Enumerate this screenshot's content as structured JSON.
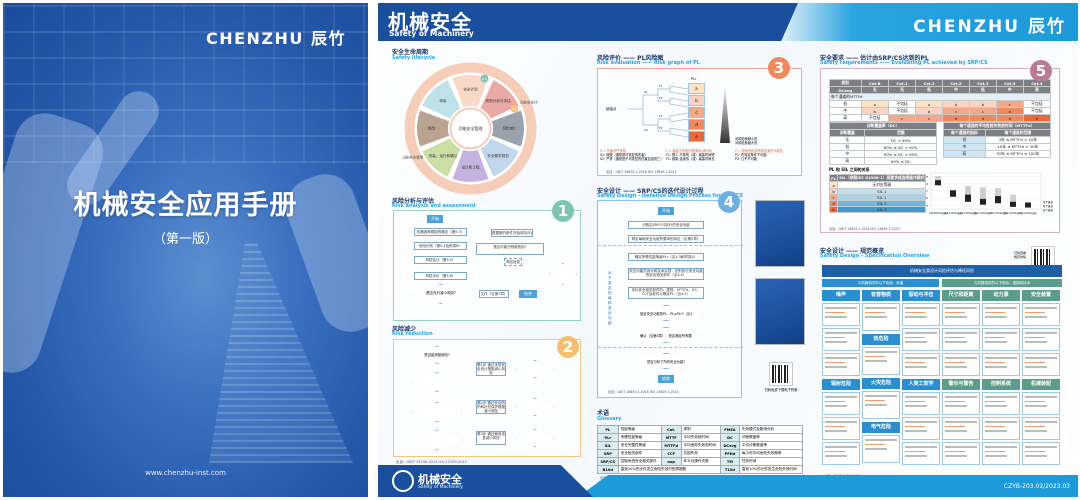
{
  "cover": {
    "logo": "CHENZHU 辰竹",
    "title": "机械安全应用手册",
    "edition": "（第一版）",
    "url": "www.chenzhu-inst.com"
  },
  "spread": {
    "header": {
      "title": "机械安全",
      "subtitle": "Safety of Machinery",
      "logo": "CHENZHU 辰竹"
    },
    "footer": {
      "logo_cn": "机械安全",
      "logo_en": "Safety of Machinery",
      "code": "CZYB-203.02/2023.03"
    },
    "lifecycle": {
      "title_cn": "安全生命周期",
      "title_en": "Safety lifecycle",
      "center": "功能安全管理",
      "ring_labels": [
        "功能安全评估",
        "功能安全管理"
      ],
      "segments": [
        {
          "label": "安全计划",
          "color": "#f8d9c8"
        },
        {
          "label": "风险分析与评估",
          "color": "#e9a9a6"
        },
        {
          "label": "风险减少",
          "color": "#9aa3ad"
        },
        {
          "label": "安全要求规范",
          "color": "#c3d7ec"
        },
        {
          "label": "设计和工程",
          "color": "#c6b2e0"
        },
        {
          "label": "安装、运行和确认",
          "color": "#cadfa4"
        },
        {
          "label": "修改",
          "color": "#bba392"
        },
        {
          "label": "停用",
          "color": "#bfe1e8"
        }
      ],
      "markers": [
        "▷1",
        "▷2"
      ]
    },
    "risk_analysis": {
      "title_cn": "风险分析与评估",
      "title_en": "Risk analysis and assessment",
      "badge": "1",
      "start": "开始",
      "end": "结束",
      "steps": [
        "机器各种限制的确定（第5.3）",
        "危险识别（第5.4及附录B）",
        "风险估计（第5.5）",
        "风险评价（第5.6）"
      ],
      "decision": "是否充分减小风险?",
      "doc": "文件（见第7章）",
      "side": "根据新的条件开始风险评价",
      "note": "是否可能识别新危险?",
      "risk_info": "风险信息",
      "yes": "是",
      "no": "否"
    },
    "risk_reduction": {
      "title_cn": "风险减少",
      "title_en": "Risk reduction",
      "badge": "2",
      "decisions": [
        "是否能消除危险?",
        "是否能通过本质安全设计措施减小风险?",
        "是否能通过防护装置、保护装置减小风险?",
        "是否能通过使用信息减小风险?"
      ],
      "steps": [
        "第1步 通过本质安全设计措施减小风险",
        "第2步 通过安全防护和补充保护措施减小风险",
        "第3步 通过使用信息减小风险"
      ],
      "check": "是否达到预期的风险减小?",
      "source": "出自：GB/T 15706-2012 ISO 12100:2010"
    },
    "risk_graph": {
      "title_cn": "风险评价 —— PL风险图",
      "title_en": "Risk evaluation —— Risk graph of PL",
      "badge": "3",
      "start": "起始点",
      "plr_label": "PLr",
      "levels": [
        {
          "pl": "a",
          "color": "#fbe3c3"
        },
        {
          "pl": "b",
          "color": "#f9d3c3"
        },
        {
          "pl": "c",
          "color": "#f2a98a"
        },
        {
          "pl": "d",
          "color": "#ed8a5e"
        },
        {
          "pl": "e",
          "color": "#e8693a"
        }
      ],
      "branch_labels": [
        "S1",
        "S2",
        "F1",
        "F2",
        "F1",
        "F2",
        "P1",
        "P2"
      ],
      "legend_s": [
        "S = 伤害的严重度",
        "S1: 轻微（通常是可恢复的伤害）",
        "S2: 严重（通常是不可恢复的伤害包括死亡）"
      ],
      "legend_f": [
        "F = 暴露于危险的频率和/或时间",
        "F1: 很少-不常有（或）暴露时间短",
        "F2: 频繁-连续的（或）暴露时间长"
      ],
      "legend_p": [
        "P = 避免危险或限制伤害的可能性",
        "P1: 在特定条件下可能",
        "P2: 几乎不可能"
      ],
      "risk_low": "对风险贡献小的",
      "risk_high": "对风险贡献大的",
      "source": "出自：GB/T 16855.1-2018 ISO 13849-1:2015"
    },
    "iterative": {
      "title_cn": "安全设计 —— SRP/CS的迭代设计过程",
      "title_en": "Safety Design - Iterative Design Process for SRP/CS",
      "badge": "4",
      "start": "开始",
      "end": "结束",
      "steps": [
        "识别由SRP/CS执行的安全功能",
        "规定每种安全功能所要求的特征（见第5章）",
        "确定所需性能等级PLr（见4.3和附录A）",
        "安全功能的设计和技术实现：识别执行安全功能的安全相关部件（见4.4）",
        "评价安全相关部件的：类别、MTTFd、DC、CCF及软件以确定PL（见4.5）"
      ],
      "decisions": [
        "验证安全功能的PL：PL≥PLr?（见4.7）",
        "确认（见第8章）：是否满足所有要求?",
        "是否分析了所有安全功能?"
      ],
      "side_label": "对于选定的每种安全功能",
      "download": "扫码免费下载电子样册",
      "yes": "是",
      "no": "否",
      "source": "出自：GB/T 16855.1-2018 ISO 13849-1:2015"
    },
    "glossary": {
      "title_cn": "术语",
      "title_en": "Glossary",
      "rows": [
        [
          [
            "PL",
            "性能等级"
          ],
          [
            "Cat.",
            "类别"
          ],
          [
            "FMEA",
            "失效模式及影响分析"
          ]
        ],
        [
          [
            "PLr",
            "所需性能等级"
          ],
          [
            "MTTF",
            "平均失效前时间"
          ],
          [
            "DC",
            "诊断覆盖率"
          ]
        ],
        [
          [
            "SIL",
            "安全完整性等级"
          ],
          [
            "MTTFd",
            "平均危险失效前时间"
          ],
          [
            "DCavg",
            "平均诊断覆盖率"
          ]
        ],
        [
          [
            "SRP",
            "安全相关部件"
          ],
          [
            "CCF",
            "共因失效"
          ],
          [
            "PFHd",
            "每小时平均危险失效概率"
          ]
        ],
        [
          [
            "SRP/CS",
            "控制系统安全相关部件"
          ],
          [
            "nop",
            "年平均操作次数"
          ],
          [
            "TM",
            "任务时间"
          ]
        ],
        [
          [
            "B10d",
            "直到10%的元件发生危险失效时的周期数"
          ],
          [
            "T10d",
            "直到10%的元件发生危险失效时间"
          ]
        ]
      ],
      "source": "出自：GB/T 16855.1-2018 ISO 13849-1:2015"
    },
    "requirements": {
      "title_cn": "安全要求 —— 估计由SRP/CS达到的PL",
      "title_en": "Safety requirements —— Evaluating PL achieved by SRP/CS",
      "badge": "5",
      "main_table": {
        "header": [
          "类别",
          "Cat.B",
          "Cat.1",
          "Cat.2",
          "Cat.2",
          "Cat.3",
          "Cat.3",
          "Cat.4"
        ],
        "dc_row": [
          "DCavg",
          "无",
          "无",
          "低",
          "中",
          "低",
          "中",
          "高"
        ],
        "mttf_label": "每个通道的MTTFd",
        "rows": [
          [
            "低",
            "a",
            "不包括",
            "a",
            "b",
            "b",
            "c",
            "不包括"
          ],
          [
            "中",
            "b",
            "不包括",
            "b",
            "c",
            "c",
            "d",
            "不包括"
          ],
          [
            "高",
            "不包括",
            "c",
            "c",
            "d",
            "d",
            "d",
            "e"
          ]
        ]
      },
      "dc_table": {
        "title": "诊断覆盖率（DC）",
        "header": [
          "诊断覆盖",
          "范围"
        ],
        "rows": [
          [
            "无",
            "DC < 60%"
          ],
          [
            "低",
            "60% ≤ DC < 90%"
          ],
          [
            "中",
            "90% ≤ DC < 99%"
          ],
          [
            "高",
            "99% ≤ DC"
          ]
        ]
      },
      "mttf_table": {
        "title": "每个通道的平均危险失效前时间（MTTFd）",
        "header": [
          "每个通道的指标",
          "每个通道的范围"
        ],
        "rows": [
          [
            "低",
            "3年 ≤ MTTFd < 10年"
          ],
          [
            "中",
            "10年 ≤ MTTFd < 30年"
          ],
          [
            "高",
            "30年 ≤ MTTFd ≤ 100年"
          ]
        ]
      },
      "sil_table": {
        "title": "PL 和 SIL 之间的关系",
        "header": [
          "PL",
          "SIL（参照IEC 61508-1）高要求或连续操作模式"
        ],
        "rows": [
          [
            "a",
            "无对应等级"
          ],
          [
            "b",
            "SIL 1"
          ],
          [
            "c",
            "SIL 1"
          ],
          [
            "d",
            "SIL 2"
          ],
          [
            "e",
            "SIL 3"
          ]
        ]
      },
      "bar_chart": {
        "y_ticks": [
          "a",
          "b",
          "c",
          "d",
          "e"
        ],
        "categories": [
          "Cat.B DCavg无",
          "Cat.1 DCavg无",
          "Cat.2 DCavg低",
          "Cat.2 DCavg中",
          "Cat.3 DCavg低",
          "Cat.3 DCavg中",
          "Cat.4 DCavg高"
        ],
        "legend": [
          "每个通道的MTTFd=低",
          "每个通道的MTTFd=中",
          "每个通道的MTTFd=高"
        ]
      },
      "source": "出自：GB/T 16855.1-2018 ISO 13849-1:2015"
    },
    "spec_overview": {
      "title_cn": "安全设计 —— 规范概览",
      "title_en": "Safety Design - Specification Overview",
      "qr_label": "扫码查看规范详情",
      "banner": "机械安全类设计风险评估与降低风险",
      "group_left": "与机器相关的以下危险：危害",
      "group_right": "与机器相关的以下危险：措施和技术",
      "columns": [
        [
          "噪声",
          "辐射危险"
        ],
        [
          "有害物质",
          "热危险",
          "火灾危险",
          "电气危险"
        ],
        [
          "振动与冲击",
          "人类工效学"
        ],
        [
          "尺寸和距离",
          "警示与警告"
        ],
        [
          "动力源",
          "控制系统"
        ],
        [
          "安全装置",
          "机械装配"
        ]
      ],
      "source": "出自：GB/T 15706-2012"
    }
  }
}
